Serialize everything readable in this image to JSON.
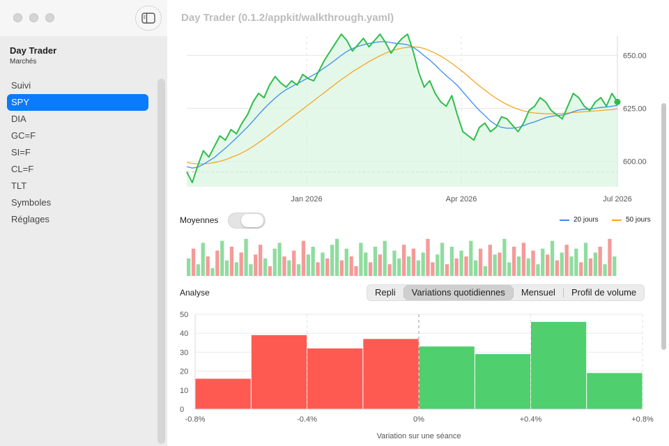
{
  "window": {
    "title": "Day Trader (0.1.2/appkit/walkthrough.yaml)"
  },
  "sidebar": {
    "app_title": "Day Trader",
    "app_subtitle": "Marchés",
    "items": [
      {
        "label": "Suivi",
        "active": false
      },
      {
        "label": "SPY",
        "active": true
      },
      {
        "label": "DIA",
        "active": false
      },
      {
        "label": "GC=F",
        "active": false
      },
      {
        "label": "SI=F",
        "active": false
      },
      {
        "label": "CL=F",
        "active": false
      },
      {
        "label": "TLT",
        "active": false
      },
      {
        "label": "Symboles",
        "active": false
      },
      {
        "label": "Réglages",
        "active": false
      }
    ]
  },
  "controls": {
    "moyennes_label": "Moyennes",
    "moyennes_on": false,
    "legend": [
      {
        "label": "20 jours",
        "color": "#3b8cf0"
      },
      {
        "label": "50 jours",
        "color": "#f5a623"
      }
    ],
    "analyse_label": "Analyse",
    "segments": [
      "Repli",
      "Variations quotidiennes",
      "Mensuel",
      "Profil de volume"
    ],
    "selected_segment": "Variations quotidiennes"
  },
  "chart_data": [
    {
      "type": "line",
      "title": "",
      "x_ticks": [
        "Jan 2026",
        "Apr 2026",
        "Jul 2026"
      ],
      "y_ticks": [
        600,
        625,
        650
      ],
      "y_tick_labels": [
        "600.00",
        "625.00",
        "650.00"
      ],
      "ylim": [
        588,
        659
      ],
      "reference_line": 595,
      "grid": true,
      "colors": {
        "price": "#2ebd4b",
        "ma20": "#3b8cf0",
        "ma50": "#f5a623",
        "fill": "#d9f5df"
      },
      "series": [
        {
          "name": "",
          "values": [
            595,
            590,
            598,
            605,
            602,
            607,
            612,
            610,
            615,
            613,
            618,
            622,
            628,
            632,
            630,
            636,
            640,
            637,
            635,
            638,
            636,
            641,
            639,
            638,
            643,
            648,
            652,
            656,
            660,
            657,
            652,
            655,
            658,
            654,
            657,
            660,
            656,
            651,
            655,
            658,
            660,
            652,
            642,
            635,
            638,
            632,
            628,
            626,
            631,
            622,
            614,
            612,
            610,
            616,
            618,
            614,
            616,
            621,
            620,
            617,
            614,
            618,
            624,
            626,
            630,
            628,
            624,
            622,
            620,
            626,
            632,
            630,
            626,
            624,
            628,
            630,
            626,
            632,
            628
          ]
        },
        {
          "name": "20 jours",
          "values": [
            597.5,
            596.8,
            597.2,
            598.6,
            600.2,
            601.8,
            604.0,
            606.2,
            608.6,
            611.0,
            613.6,
            616.2,
            619.0,
            622.0,
            624.8,
            627.4,
            629.8,
            632.0,
            633.8,
            635.2,
            636.6,
            638.0,
            639.4,
            640.8,
            642.4,
            644.2,
            646.0,
            648.0,
            650.0,
            651.8,
            653.2,
            654.2,
            655.0,
            655.6,
            656.0,
            656.4,
            656.4,
            656.0,
            655.6,
            655.4,
            655.0,
            653.8,
            652.0,
            649.8,
            647.8,
            645.4,
            642.8,
            640.4,
            638.2,
            635.8,
            632.8,
            629.8,
            626.8,
            624.0,
            621.6,
            619.0,
            617.2,
            616.0,
            615.6,
            615.6,
            616.0,
            616.8,
            617.8,
            618.6,
            619.6,
            620.6,
            621.2,
            621.6,
            621.8,
            622.4,
            623.4,
            624.2,
            624.6,
            624.6,
            625.0,
            625.4,
            625.6,
            626.0,
            626.4
          ]
        },
        {
          "name": "50 jours",
          "values": [
            599.5,
            599.0,
            598.8,
            598.8,
            599.0,
            599.4,
            600.0,
            600.8,
            601.8,
            602.8,
            604.0,
            605.4,
            607.0,
            608.8,
            610.6,
            612.6,
            614.6,
            616.6,
            618.6,
            620.6,
            622.6,
            624.6,
            626.6,
            628.6,
            630.6,
            632.6,
            634.6,
            636.6,
            638.6,
            640.4,
            642.2,
            643.8,
            645.4,
            647.0,
            648.4,
            649.8,
            651.0,
            652.0,
            652.8,
            653.4,
            653.8,
            654.0,
            653.8,
            653.2,
            652.2,
            651.0,
            649.6,
            648.0,
            646.2,
            644.2,
            642.2,
            640.0,
            637.8,
            635.6,
            633.6,
            631.6,
            629.8,
            628.2,
            626.8,
            625.6,
            624.6,
            623.8,
            623.2,
            622.8,
            622.6,
            622.4,
            622.4,
            622.4,
            622.6,
            622.8,
            623.0,
            623.2,
            623.4,
            623.6,
            623.8,
            624.0,
            624.2,
            624.4,
            624.8
          ]
        }
      ]
    },
    {
      "type": "bar",
      "title": "",
      "legend": [],
      "colors": {
        "up": "#8fdc9f",
        "down": "#f59a98"
      },
      "values": [
        0.45,
        0.7,
        0.3,
        0.85,
        0.5,
        0.2,
        0.65,
        0.9,
        0.4,
        0.75,
        0.35,
        0.6,
        0.95,
        0.3,
        0.55,
        0.8,
        0.45,
        0.25,
        0.7,
        0.85,
        0.5,
        0.4,
        0.65,
        0.3,
        0.9,
        0.55,
        0.75,
        0.35,
        0.6,
        0.45,
        0.8,
        0.95,
        0.4,
        0.7,
        0.5,
        0.25,
        0.85,
        0.6,
        0.35,
        0.75,
        0.55,
        0.9,
        0.3,
        0.65,
        0.45,
        0.8,
        0.5,
        0.7,
        0.4,
        0.6,
        0.95,
        0.35,
        0.55,
        0.85,
        0.3,
        0.75,
        0.45,
        0.65,
        0.5,
        0.9,
        0.4,
        0.7,
        0.25,
        0.8,
        0.55,
        0.6,
        0.95,
        0.35,
        0.75,
        0.5,
        0.85,
        0.45,
        0.65,
        0.3,
        0.7,
        0.55,
        0.9,
        0.4,
        0.6,
        0.8,
        0.5,
        0.7,
        0.35,
        0.85,
        0.45,
        0.6,
        0.75,
        0.3,
        0.95,
        0.5
      ],
      "up": [
        true,
        false,
        true,
        true,
        false,
        true,
        false,
        true,
        true,
        false,
        true,
        false,
        true,
        true,
        false,
        false,
        true,
        false,
        true,
        true,
        false,
        true,
        false,
        true,
        false,
        true,
        true,
        false,
        true,
        false,
        true,
        true,
        false,
        true,
        false,
        false,
        true,
        true,
        false,
        true,
        false,
        true,
        false,
        true,
        true,
        false,
        true,
        false,
        true,
        true,
        false,
        false,
        true,
        true,
        false,
        true,
        false,
        true,
        false,
        true,
        true,
        false,
        true,
        false,
        true,
        false,
        true,
        true,
        false,
        true,
        false,
        true,
        false,
        true,
        true,
        false,
        true,
        false,
        true,
        false,
        true,
        true,
        false,
        true,
        false,
        true,
        false,
        true,
        false,
        true
      ]
    },
    {
      "type": "bar",
      "title": "",
      "xlabel": "Variation sur une séance",
      "x_tick_labels": [
        "-0.8%",
        "-0.4%",
        "0%",
        "+0.4%",
        "+0.8%"
      ],
      "y_ticks": [
        0,
        10,
        20,
        30,
        40,
        50
      ],
      "ylim": [
        0,
        50
      ],
      "grid": true,
      "bins": [
        {
          "from": -0.8,
          "to": -0.6,
          "value": 16,
          "color": "#ff5a52"
        },
        {
          "from": -0.6,
          "to": -0.4,
          "value": 39,
          "color": "#ff5a52"
        },
        {
          "from": -0.4,
          "to": -0.2,
          "value": 32,
          "color": "#ff5a52"
        },
        {
          "from": -0.2,
          "to": 0.0,
          "value": 37,
          "color": "#ff5a52"
        },
        {
          "from": 0.0,
          "to": 0.2,
          "value": 33,
          "color": "#4fcf6d"
        },
        {
          "from": 0.2,
          "to": 0.4,
          "value": 29,
          "color": "#4fcf6d"
        },
        {
          "from": 0.4,
          "to": 0.6,
          "value": 46,
          "color": "#4fcf6d"
        },
        {
          "from": 0.6,
          "to": 0.8,
          "value": 19,
          "color": "#4fcf6d"
        }
      ]
    }
  ]
}
